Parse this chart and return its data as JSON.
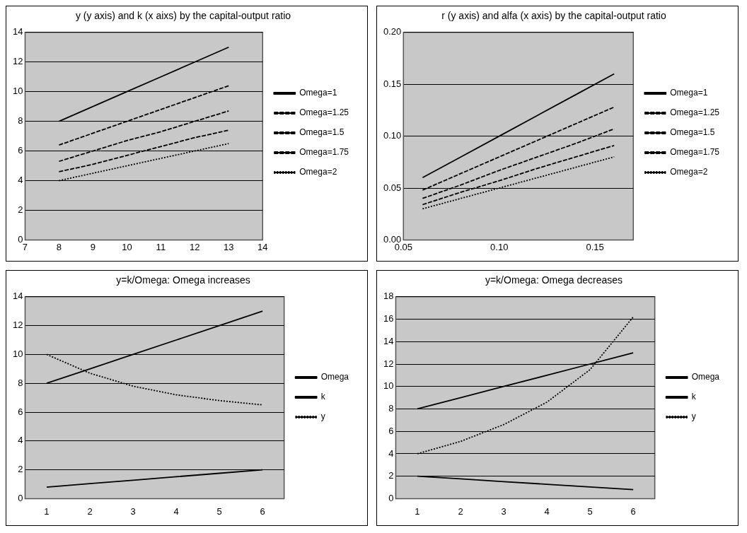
{
  "chart_data": [
    {
      "type": "line",
      "title": "y (y axis) and k (x aixs) by the capital-output ratio",
      "x": [
        8,
        9,
        10,
        11,
        12,
        13
      ],
      "xlim": [
        7,
        14
      ],
      "xticks": [
        7,
        8,
        9,
        10,
        11,
        12,
        13,
        14
      ],
      "ylim": [
        0,
        14
      ],
      "yticks": [
        0,
        2,
        4,
        6,
        8,
        10,
        12,
        14
      ],
      "grid": "y",
      "legend": "right",
      "marker": "none",
      "series": [
        {
          "name": "Omega=1",
          "color": "#000000",
          "line_style": "solid",
          "values": [
            8,
            9,
            10,
            11,
            12,
            13
          ]
        },
        {
          "name": "Omega=1.25",
          "color": "#000000",
          "line_style": "dashed",
          "values": [
            6.4,
            7.2,
            8,
            8.8,
            9.6,
            10.4
          ]
        },
        {
          "name": "Omega=1.5",
          "color": "#000000",
          "line_style": "dashed",
          "values": [
            5.3,
            6,
            6.7,
            7.3,
            8,
            8.7
          ]
        },
        {
          "name": "Omega=1.75",
          "color": "#000000",
          "line_style": "dashed",
          "values": [
            4.6,
            5.1,
            5.7,
            6.3,
            6.9,
            7.4
          ]
        },
        {
          "name": "Omega=2",
          "color": "#000000",
          "line_style": "dotted",
          "values": [
            4,
            4.5,
            5,
            5.5,
            6,
            6.5
          ]
        }
      ]
    },
    {
      "type": "line",
      "title": "r (y axis) and alfa (x axis) by the capital-output ratio",
      "x": [
        0.06,
        0.08,
        0.1,
        0.12,
        0.14,
        0.16
      ],
      "xlim": [
        0.05,
        0.17
      ],
      "xticks": [
        {
          "value": 0.05,
          "label": "0.05"
        },
        {
          "value": 0.1,
          "label": "0.10"
        },
        {
          "value": 0.15,
          "label": "0.15"
        }
      ],
      "ylim": [
        0,
        0.2
      ],
      "yticks": [
        {
          "value": 0,
          "label": "0.00"
        },
        {
          "value": 0.05,
          "label": "0.05"
        },
        {
          "value": 0.1,
          "label": "0.10"
        },
        {
          "value": 0.15,
          "label": "0.15"
        },
        {
          "value": 0.2,
          "label": "0.20"
        }
      ],
      "grid": "y",
      "legend": "right",
      "marker": "none",
      "series": [
        {
          "name": "Omega=1",
          "color": "#000000",
          "line_style": "solid",
          "values": [
            0.06,
            0.08,
            0.1,
            0.12,
            0.14,
            0.16
          ]
        },
        {
          "name": "Omega=1.25",
          "color": "#000000",
          "line_style": "dashed",
          "values": [
            0.048,
            0.064,
            0.08,
            0.096,
            0.112,
            0.128
          ]
        },
        {
          "name": "Omega=1.5",
          "color": "#000000",
          "line_style": "dashed",
          "values": [
            0.04,
            0.053,
            0.067,
            0.08,
            0.093,
            0.107
          ]
        },
        {
          "name": "Omega=1.75",
          "color": "#000000",
          "line_style": "dashed",
          "values": [
            0.034,
            0.046,
            0.057,
            0.069,
            0.08,
            0.091
          ]
        },
        {
          "name": "Omega=2",
          "color": "#000000",
          "line_style": "dotted",
          "values": [
            0.03,
            0.04,
            0.05,
            0.06,
            0.07,
            0.08
          ]
        }
      ]
    },
    {
      "type": "line",
      "title": "y=k/Omega: Omega increases",
      "categories": [
        "1",
        "2",
        "3",
        "4",
        "5",
        "6"
      ],
      "ylim": [
        0,
        14
      ],
      "yticks": [
        0,
        2,
        4,
        6,
        8,
        10,
        12,
        14
      ],
      "grid": "y",
      "legend": "right",
      "marker": "none",
      "series": [
        {
          "name": "Omega",
          "color": "#000000",
          "line_style": "solid",
          "values": [
            0.8,
            1.04,
            1.28,
            1.52,
            1.76,
            2
          ]
        },
        {
          "name": "k",
          "color": "#000000",
          "line_style": "solid",
          "values": [
            8,
            9,
            10,
            11,
            12,
            13
          ]
        },
        {
          "name": "y",
          "color": "#000000",
          "line_style": "dotted",
          "values": [
            10,
            8.7,
            7.8,
            7.2,
            6.8,
            6.5
          ]
        }
      ]
    },
    {
      "type": "line",
      "title": "y=k/Omega: Omega decreases",
      "categories": [
        "1",
        "2",
        "3",
        "4",
        "5",
        "6"
      ],
      "ylim": [
        0,
        18
      ],
      "yticks": [
        0,
        2,
        4,
        6,
        8,
        10,
        12,
        14,
        16,
        18
      ],
      "grid": "y",
      "legend": "right",
      "marker": "none",
      "series": [
        {
          "name": "Omega",
          "color": "#000000",
          "line_style": "solid",
          "values": [
            2,
            1.76,
            1.52,
            1.28,
            1.04,
            0.8
          ]
        },
        {
          "name": "k",
          "color": "#000000",
          "line_style": "solid",
          "values": [
            8,
            9,
            10,
            11,
            12,
            13
          ]
        },
        {
          "name": "y",
          "color": "#000000",
          "line_style": "dotted",
          "values": [
            4,
            5.1,
            6.6,
            8.6,
            11.5,
            16.2
          ]
        }
      ]
    }
  ]
}
